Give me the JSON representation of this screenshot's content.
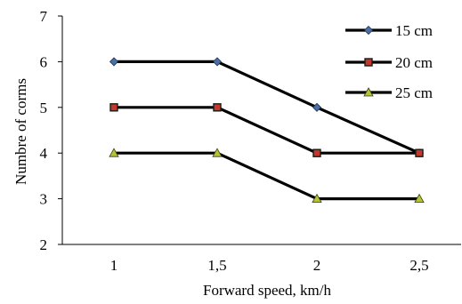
{
  "chart_data": {
    "type": "line",
    "title": "",
    "xlabel": "Forward speed, km/h",
    "ylabel": "Numbre of corms",
    "categories": [
      "1",
      "1,5",
      "2",
      "2,5"
    ],
    "ylim": [
      2,
      7
    ],
    "yticks": [
      "2",
      "3",
      "4",
      "5",
      "6",
      "7"
    ],
    "grid": false,
    "legend": "top-right",
    "series": [
      {
        "name": "15 cm",
        "values": [
          6,
          6,
          5,
          4
        ],
        "marker": "diamond",
        "marker_color": "#4a6fa5",
        "line_color": "#000000"
      },
      {
        "name": "20 cm",
        "values": [
          5,
          5,
          4,
          4
        ],
        "marker": "square",
        "marker_color": "#c0392b",
        "line_color": "#000000"
      },
      {
        "name": "25 cm",
        "values": [
          4,
          4,
          3,
          3
        ],
        "marker": "triangle",
        "marker_color": "#b5c435",
        "line_color": "#000000"
      }
    ]
  }
}
